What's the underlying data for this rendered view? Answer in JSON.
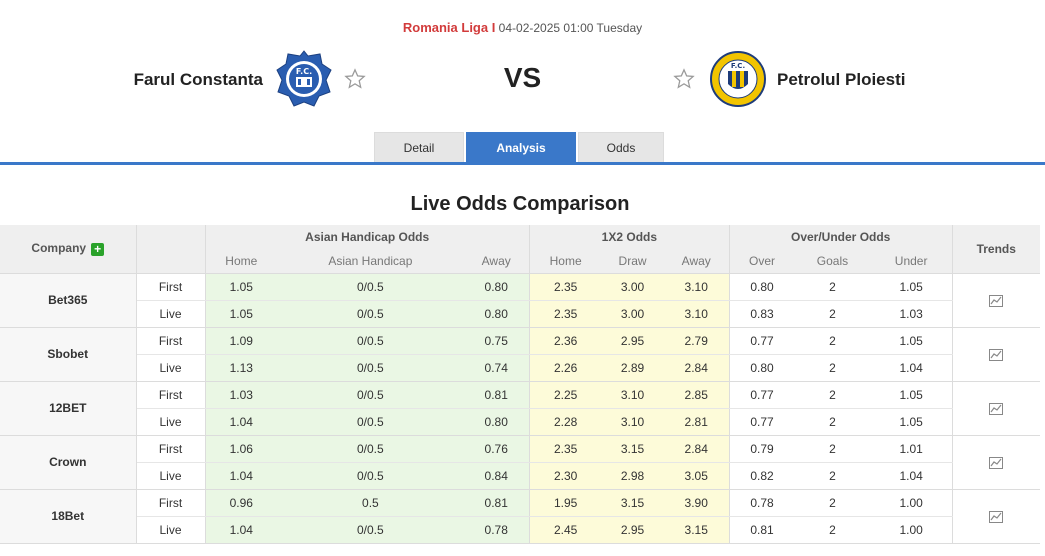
{
  "match": {
    "league": "Romania Liga I",
    "datetime": "04-02-2025 01:00 Tuesday",
    "home_team": "Farul Constanta",
    "away_team": "Petrolul Ploiesti",
    "vs_label": "VS"
  },
  "tabs": [
    {
      "label": "Detail",
      "active": false
    },
    {
      "label": "Analysis",
      "active": true
    },
    {
      "label": "Odds",
      "active": false
    }
  ],
  "section_title": "Live Odds Comparison",
  "table": {
    "company_header": "Company",
    "trends_header": "Trends",
    "groups": [
      "Asian Handicap Odds",
      "1X2 Odds",
      "Over/Under Odds"
    ],
    "subheaders": [
      "Home",
      "Asian Handicap",
      "Away",
      "Home",
      "Draw",
      "Away",
      "Over",
      "Goals",
      "Under"
    ],
    "companies": [
      {
        "name": "Bet365",
        "rows": [
          {
            "kind": "First",
            "ah": [
              "1.05",
              "0/0.5",
              "0.80"
            ],
            "x12": [
              "2.35",
              "3.00",
              "3.10"
            ],
            "ou": [
              "0.80",
              "2",
              "1.05"
            ]
          },
          {
            "kind": "Live",
            "ah": [
              "1.05",
              "0/0.5",
              "0.80"
            ],
            "x12": [
              "2.35",
              "3.00",
              "3.10"
            ],
            "ou": [
              "0.83",
              "2",
              "1.03"
            ]
          }
        ]
      },
      {
        "name": "Sbobet",
        "rows": [
          {
            "kind": "First",
            "ah": [
              "1.09",
              "0/0.5",
              "0.75"
            ],
            "x12": [
              "2.36",
              "2.95",
              "2.79"
            ],
            "ou": [
              "0.77",
              "2",
              "1.05"
            ]
          },
          {
            "kind": "Live",
            "ah": [
              "1.13",
              "0/0.5",
              "0.74"
            ],
            "x12": [
              "2.26",
              "2.89",
              "2.84"
            ],
            "ou": [
              "0.80",
              "2",
              "1.04"
            ]
          }
        ]
      },
      {
        "name": "12BET",
        "rows": [
          {
            "kind": "First",
            "ah": [
              "1.03",
              "0/0.5",
              "0.81"
            ],
            "x12": [
              "2.25",
              "3.10",
              "2.85"
            ],
            "ou": [
              "0.77",
              "2",
              "1.05"
            ]
          },
          {
            "kind": "Live",
            "ah": [
              "1.04",
              "0/0.5",
              "0.80"
            ],
            "x12": [
              "2.28",
              "3.10",
              "2.81"
            ],
            "ou": [
              "0.77",
              "2",
              "1.05"
            ]
          }
        ]
      },
      {
        "name": "Crown",
        "rows": [
          {
            "kind": "First",
            "ah": [
              "1.06",
              "0/0.5",
              "0.76"
            ],
            "x12": [
              "2.35",
              "3.15",
              "2.84"
            ],
            "ou": [
              "0.79",
              "2",
              "1.01"
            ]
          },
          {
            "kind": "Live",
            "ah": [
              "1.04",
              "0/0.5",
              "0.84"
            ],
            "x12": [
              "2.30",
              "2.98",
              "3.05"
            ],
            "ou": [
              "0.82",
              "2",
              "1.04"
            ]
          }
        ]
      },
      {
        "name": "18Bet",
        "rows": [
          {
            "kind": "First",
            "ah": [
              "0.96",
              "0.5",
              "0.81"
            ],
            "x12": [
              "1.95",
              "3.15",
              "3.90"
            ],
            "ou": [
              "0.78",
              "2",
              "1.00"
            ]
          },
          {
            "kind": "Live",
            "ah": [
              "1.04",
              "0/0.5",
              "0.78"
            ],
            "x12": [
              "2.45",
              "2.95",
              "3.15"
            ],
            "ou": [
              "0.81",
              "2",
              "1.00"
            ]
          }
        ]
      }
    ]
  },
  "colors": {
    "accent": "#3a78c9",
    "league": "#d23b3b",
    "ah_bg": "#eaf7e4",
    "x12_bg": "#fdfbd9"
  }
}
